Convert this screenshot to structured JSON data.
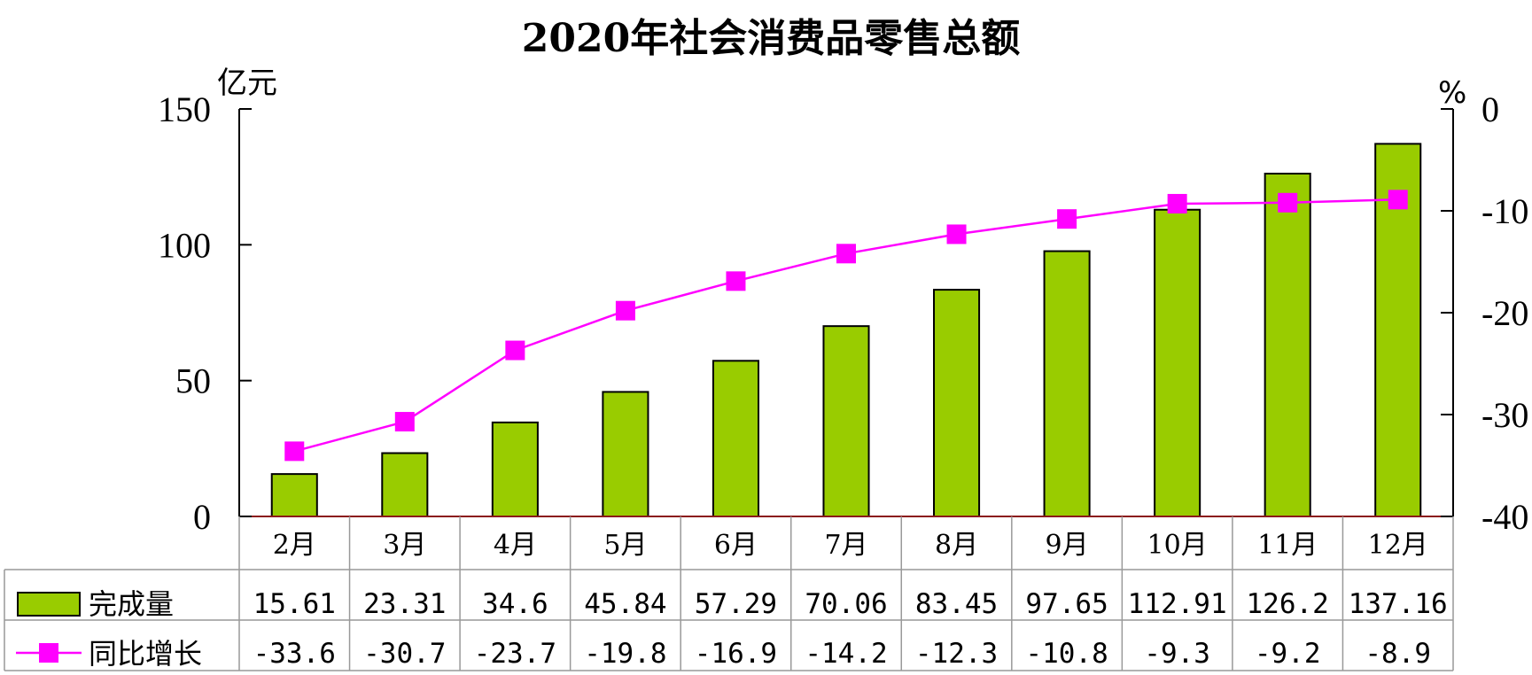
{
  "chart_data": {
    "type": "bar",
    "title": "2020年社会消费品零售总额",
    "categories": [
      "2月",
      "3月",
      "4月",
      "5月",
      "6月",
      "7月",
      "8月",
      "9月",
      "10月",
      "11月",
      "12月"
    ],
    "series": [
      {
        "name": "完成量",
        "type": "bar",
        "axis": "left",
        "color": "#99cc00",
        "values": [
          15.61,
          23.31,
          34.6,
          45.84,
          57.29,
          70.06,
          83.45,
          97.65,
          112.91,
          126.2,
          137.16
        ],
        "labels": [
          "15.61",
          "23.31",
          "34.6",
          "45.84",
          "57.29",
          "70.06",
          "83.45",
          "97.65",
          "112.91",
          "126.2",
          "137.16"
        ]
      },
      {
        "name": "同比增长",
        "type": "line",
        "axis": "right",
        "color": "#ff00ff",
        "marker": "square",
        "values": [
          -33.6,
          -30.7,
          -23.7,
          -19.8,
          -16.9,
          -14.2,
          -12.3,
          -10.8,
          -9.3,
          -9.2,
          -8.9
        ],
        "labels": [
          "-33.6",
          "-30.7",
          "-23.7",
          "-19.8",
          "-16.9",
          "-14.2",
          "-12.3",
          "-10.8",
          "-9.3",
          "-9.2",
          "-8.9"
        ]
      }
    ],
    "y_left": {
      "unit": "亿元",
      "ylim": [
        0,
        150
      ],
      "ticks": [
        0,
        50,
        100,
        150
      ],
      "tick_labels": [
        "0",
        "50",
        "100",
        "150"
      ]
    },
    "y_right": {
      "unit": "%",
      "ylim": [
        -40,
        0
      ],
      "ticks": [
        0,
        -10,
        -20,
        -30,
        -40
      ],
      "tick_labels": [
        "0",
        "-10",
        "-20",
        "-30",
        "-40"
      ]
    },
    "grid": false,
    "legend": "data-table"
  }
}
